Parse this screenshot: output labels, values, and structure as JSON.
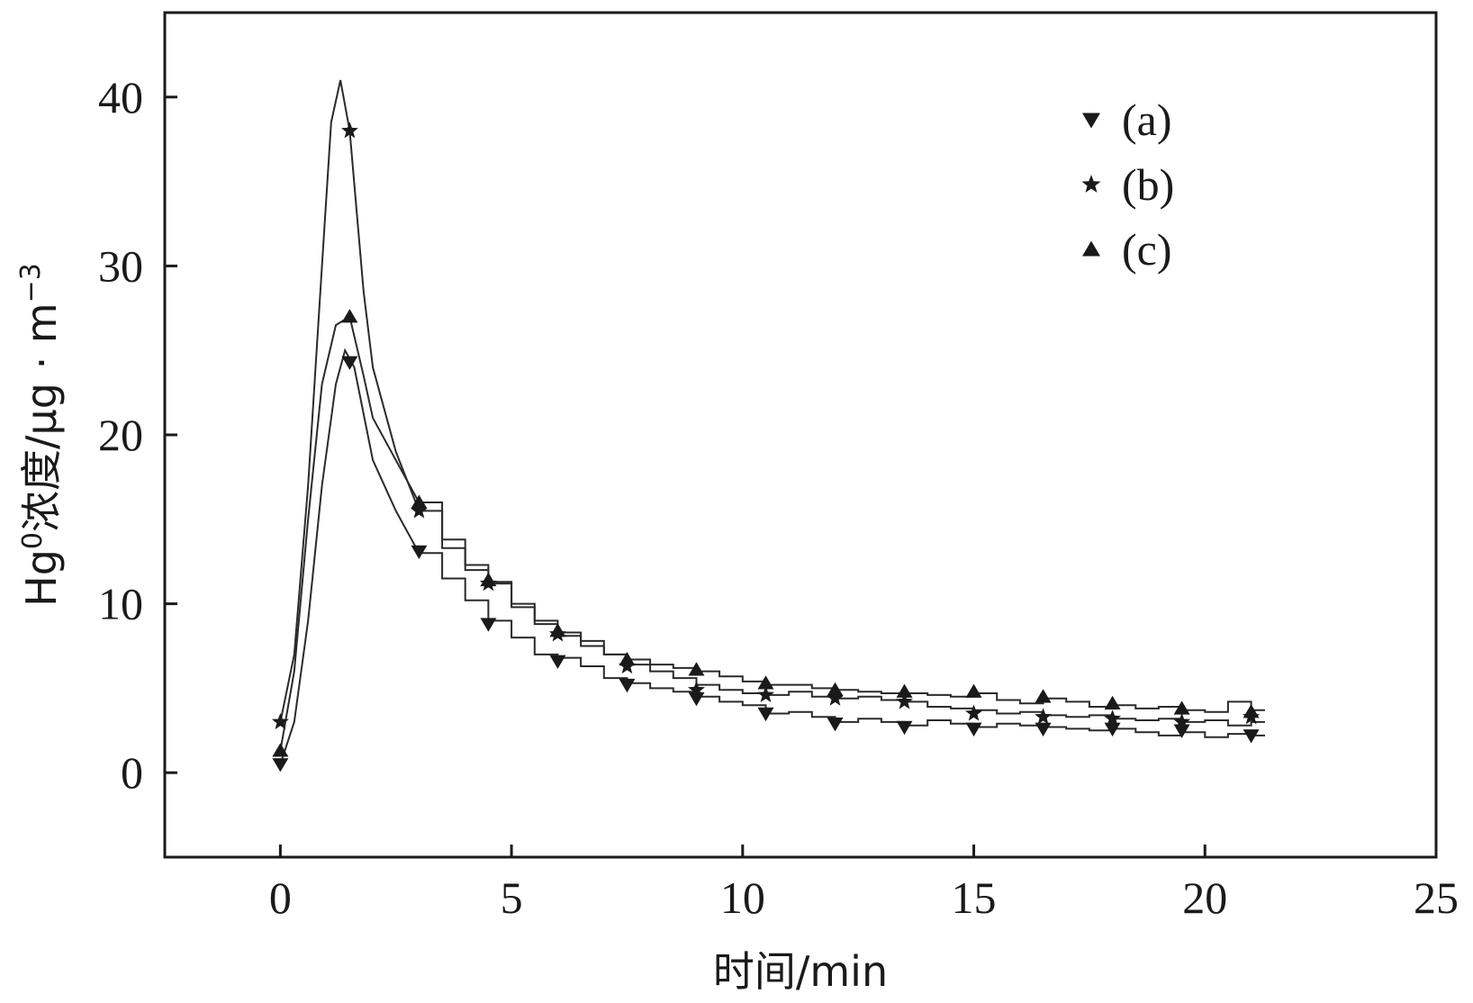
{
  "chart_data": {
    "type": "line",
    "title": "",
    "xlabel": "时间/min",
    "ylabel_base": "Hg",
    "ylabel_sup": "0",
    "ylabel_rest": "浓度/μg · m",
    "ylabel_exp": "−3",
    "xlim": [
      -2.5,
      25
    ],
    "ylim": [
      -5,
      45
    ],
    "xticks": [
      0,
      5,
      10,
      15,
      20,
      25
    ],
    "yticks": [
      0,
      10,
      20,
      30,
      40
    ],
    "grid": false,
    "legend_position": "top-right",
    "series": [
      {
        "name": "(a)",
        "marker": "triangle-down",
        "x": [
          0,
          0.3,
          0.6,
          0.9,
          1.2,
          1.4,
          1.6,
          2.0,
          2.5,
          3.0,
          3.5,
          4.0,
          4.5,
          5.0,
          5.5,
          6.0,
          6.5,
          7.0,
          7.5,
          8.0,
          8.5,
          9.0,
          9.5,
          10.0,
          10.5,
          11.0,
          11.5,
          12.0,
          12.5,
          13.0,
          13.5,
          14.0,
          14.5,
          15.0,
          15.5,
          16.0,
          16.5,
          17.0,
          17.5,
          18.0,
          18.5,
          19.0,
          19.5,
          20.0,
          20.5,
          21.0,
          21.3
        ],
        "y": [
          0.5,
          3.0,
          9.0,
          17.0,
          23.0,
          25.0,
          24.0,
          18.5,
          15.5,
          13.0,
          11.5,
          10.2,
          9.0,
          8.0,
          7.0,
          6.8,
          6.3,
          5.6,
          5.3,
          5.0,
          4.8,
          4.5,
          4.2,
          4.0,
          3.5,
          3.6,
          3.3,
          3.0,
          3.2,
          3.0,
          2.8,
          3.1,
          2.9,
          2.7,
          2.9,
          2.8,
          2.7,
          2.6,
          2.5,
          2.6,
          2.4,
          2.2,
          2.4,
          2.1,
          2.3,
          2.2,
          2.2
        ],
        "marker_x": [
          0,
          1.5,
          3,
          4.5,
          6,
          7.5,
          9,
          10.5,
          12,
          13.5,
          15,
          16.5,
          18,
          19.5,
          21
        ],
        "marker_y": [
          0.5,
          24.3,
          13.1,
          8.8,
          6.6,
          5.2,
          4.4,
          3.5,
          2.9,
          2.7,
          2.6,
          2.6,
          2.6,
          2.5,
          2.2
        ]
      },
      {
        "name": "(b)",
        "marker": "star",
        "x": [
          0,
          0.3,
          0.6,
          0.9,
          1.1,
          1.3,
          1.5,
          1.8,
          2.0,
          2.5,
          3.0,
          3.5,
          4.0,
          4.5,
          5.0,
          5.5,
          6.0,
          6.5,
          7.0,
          7.5,
          8.0,
          8.5,
          9.0,
          9.5,
          10.0,
          10.5,
          11.0,
          11.5,
          12.0,
          12.5,
          13.0,
          13.5,
          14.0,
          14.5,
          15.0,
          15.5,
          16.0,
          16.5,
          17.0,
          17.5,
          18.0,
          18.5,
          19.0,
          19.5,
          20.0,
          20.5,
          21.0,
          21.3
        ],
        "y": [
          3.0,
          7.0,
          17.0,
          30.0,
          38.5,
          41.0,
          38.0,
          28.5,
          24.0,
          19.0,
          15.5,
          13.3,
          12.0,
          11.2,
          9.8,
          8.8,
          8.1,
          7.5,
          7.0,
          6.4,
          6.0,
          5.6,
          5.2,
          4.9,
          4.7,
          4.6,
          4.8,
          4.5,
          4.4,
          4.5,
          4.3,
          4.2,
          3.9,
          3.8,
          3.7,
          3.5,
          3.6,
          3.4,
          3.3,
          3.4,
          3.2,
          3.1,
          3.2,
          3.0,
          3.1,
          2.8,
          3.0,
          3.0
        ],
        "marker_x": [
          0,
          1.5,
          3,
          4.5,
          6,
          7.5,
          9,
          10.5,
          12,
          13.5,
          15,
          16.5,
          18,
          19.5,
          21
        ],
        "marker_y": [
          3.0,
          38.0,
          15.5,
          11.2,
          8.2,
          6.3,
          4.9,
          4.6,
          4.4,
          4.2,
          3.5,
          3.3,
          3.2,
          3.0,
          3.3
        ]
      },
      {
        "name": "(c)",
        "marker": "triangle-up",
        "x": [
          0,
          0.3,
          0.6,
          0.9,
          1.2,
          1.5,
          1.8,
          2.0,
          2.5,
          3.0,
          3.5,
          4.0,
          4.5,
          5.0,
          5.5,
          6.0,
          6.5,
          7.0,
          7.5,
          8.0,
          8.5,
          9.0,
          9.5,
          10.0,
          10.5,
          11.0,
          11.5,
          12.0,
          12.5,
          13.0,
          13.5,
          14.0,
          14.5,
          15.0,
          15.5,
          16.0,
          16.5,
          17.0,
          17.5,
          18.0,
          18.5,
          19.0,
          19.5,
          20.0,
          20.5,
          21.0,
          21.3
        ],
        "y": [
          1.3,
          6.0,
          15.0,
          23.0,
          26.5,
          27.0,
          23.5,
          21.0,
          18.5,
          16.0,
          13.8,
          12.3,
          11.3,
          10.0,
          9.0,
          8.3,
          7.8,
          7.0,
          6.7,
          6.4,
          6.2,
          6.0,
          5.7,
          5.4,
          5.2,
          5.2,
          5.0,
          4.9,
          4.8,
          4.7,
          4.7,
          4.6,
          4.5,
          4.7,
          4.3,
          4.1,
          4.4,
          4.2,
          3.9,
          4.0,
          3.8,
          3.9,
          3.7,
          3.6,
          4.2,
          3.7,
          3.7
        ],
        "marker_x": [
          0,
          1.5,
          3,
          4.5,
          6,
          7.5,
          9,
          10.5,
          12,
          13.5,
          15,
          16.5,
          18,
          19.5,
          21
        ],
        "marker_y": [
          1.3,
          27.0,
          16.0,
          11.4,
          8.4,
          6.7,
          6.1,
          5.3,
          4.9,
          4.8,
          4.8,
          4.5,
          4.1,
          3.8,
          3.6
        ]
      }
    ],
    "line_color": "#2a2a2a"
  }
}
